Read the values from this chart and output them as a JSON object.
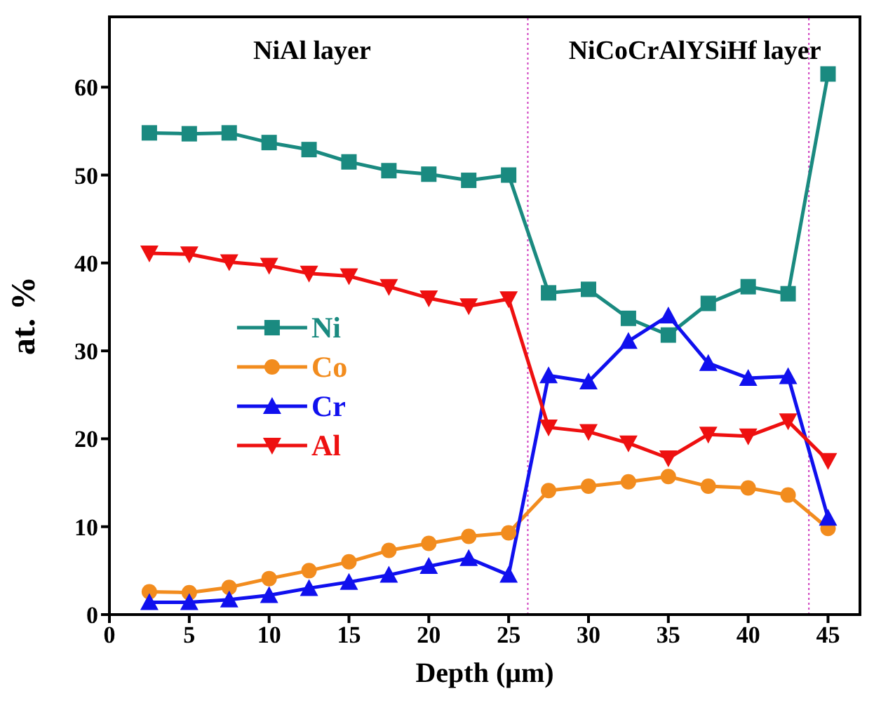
{
  "chart_data": {
    "type": "line",
    "xlabel": "Depth (μm)",
    "ylabel": "at. %",
    "x": [
      2.5,
      5,
      7.5,
      10,
      12.5,
      15,
      17.5,
      20,
      22.5,
      25,
      27.5,
      30,
      32.5,
      35,
      37.5,
      40,
      42.5,
      45
    ],
    "series": [
      {
        "name": "Ni",
        "color": "#1a8a80",
        "marker": "square",
        "values": [
          54.8,
          54.7,
          54.8,
          53.7,
          52.9,
          51.5,
          50.5,
          50.1,
          49.4,
          50.0,
          36.6,
          37.0,
          33.7,
          31.8,
          35.4,
          37.3,
          36.5,
          61.5
        ]
      },
      {
        "name": "Co",
        "color": "#f28c1e",
        "marker": "circle",
        "values": [
          2.6,
          2.5,
          3.1,
          4.1,
          5.0,
          6.0,
          7.3,
          8.1,
          8.9,
          9.3,
          14.1,
          14.6,
          15.1,
          15.7,
          14.6,
          14.4,
          13.6,
          9.8
        ]
      },
      {
        "name": "Cr",
        "color": "#1010ee",
        "marker": "triangle",
        "values": [
          1.4,
          1.4,
          1.7,
          2.2,
          3.0,
          3.7,
          4.5,
          5.5,
          6.4,
          4.5,
          27.2,
          26.5,
          31.1,
          34.0,
          28.6,
          26.9,
          27.1,
          11.0
        ]
      },
      {
        "name": "Al",
        "color": "#ee1010",
        "marker": "triangle-down",
        "values": [
          41.1,
          41.0,
          40.1,
          39.7,
          38.8,
          38.5,
          37.3,
          36.0,
          35.1,
          35.9,
          21.3,
          20.8,
          19.5,
          17.8,
          20.5,
          20.3,
          22.0,
          17.5
        ]
      }
    ],
    "xlim": [
      0,
      47
    ],
    "xticks": [
      0,
      5,
      10,
      15,
      20,
      25,
      30,
      35,
      40,
      45
    ],
    "ylim": [
      0,
      68
    ],
    "yticks": [
      0,
      10,
      20,
      30,
      40,
      50,
      60
    ],
    "ref_lines": [
      {
        "axis": "x",
        "value": 26.2,
        "color": "#d040c0",
        "line_style": "dotted"
      },
      {
        "axis": "x",
        "value": 43.8,
        "color": "#d040c0",
        "line_style": "dotted"
      }
    ],
    "annotations": [
      "NiAl layer",
      "NiCoCrAlYSiHf layer"
    ],
    "legend": "left"
  }
}
